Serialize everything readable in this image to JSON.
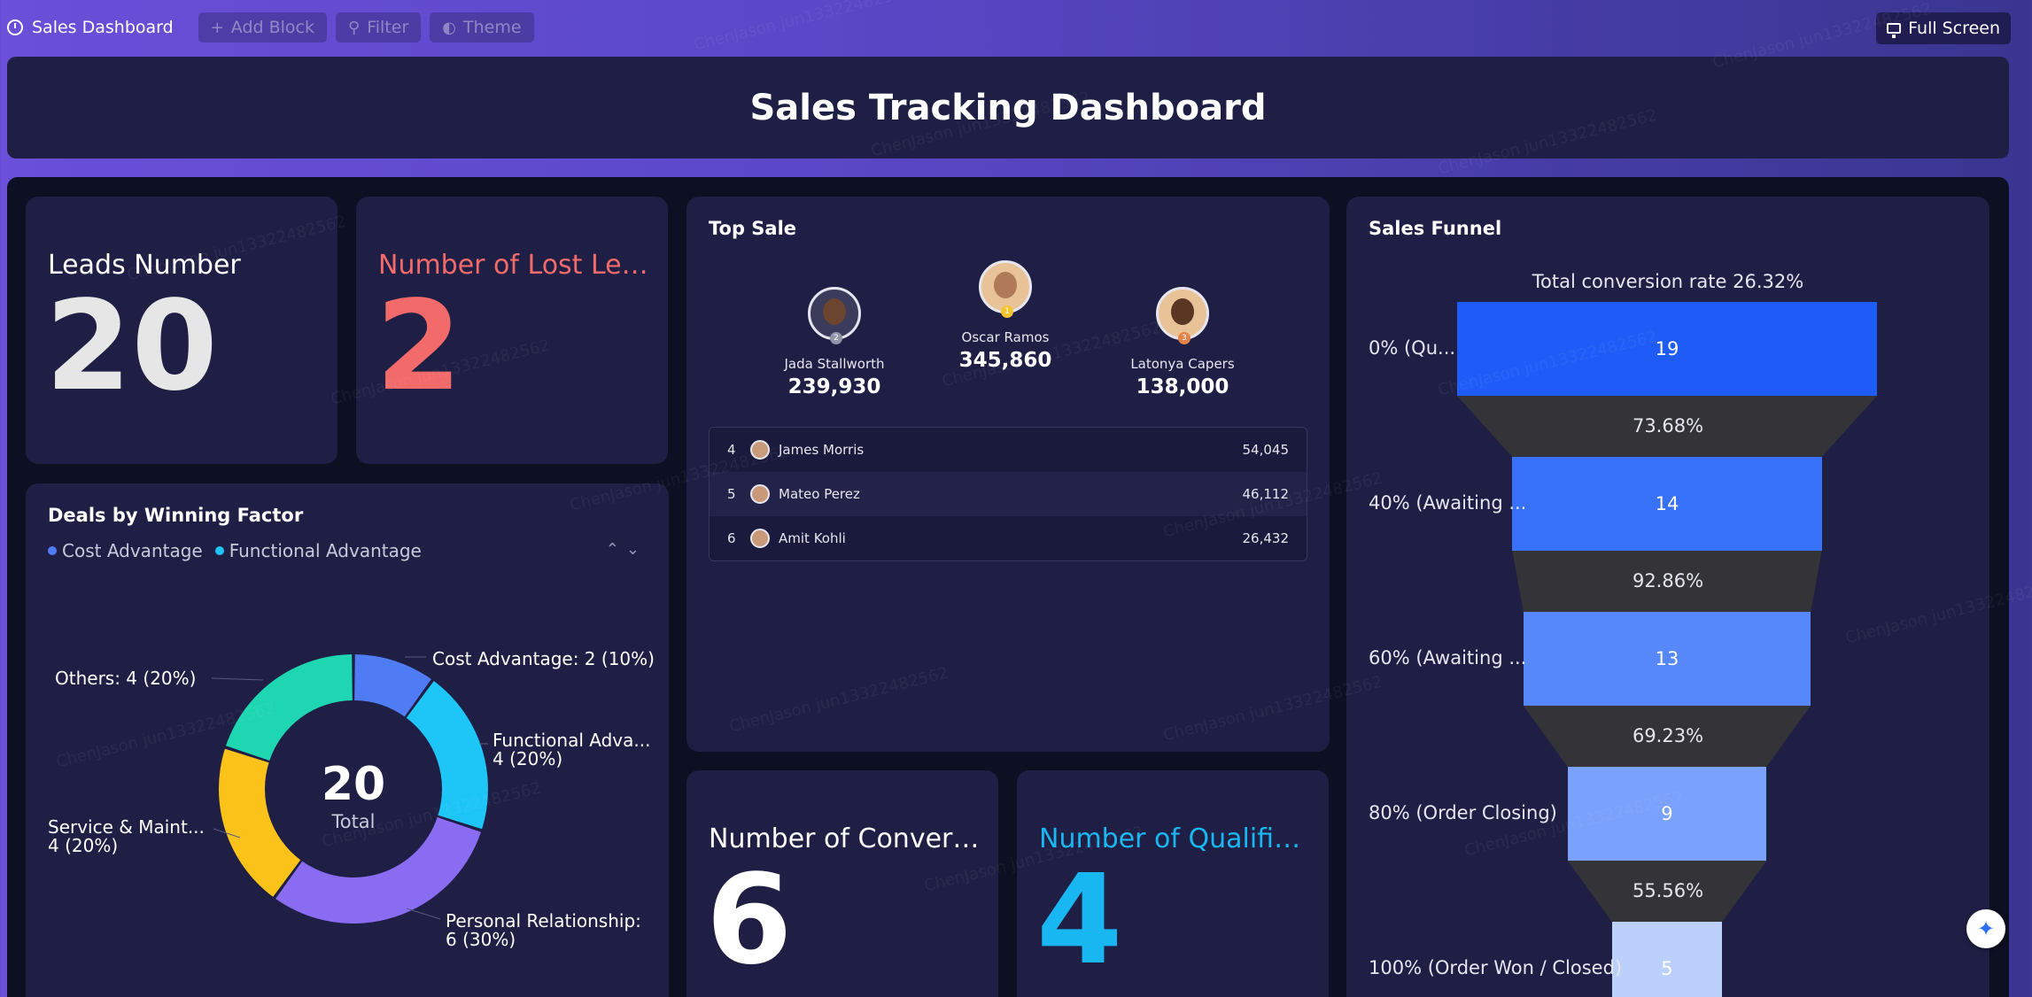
{
  "toolbar": {
    "app_title": "Sales Dashboard",
    "add_block": "Add Block",
    "filter": "Filter",
    "theme": "Theme",
    "full_screen": "Full Screen"
  },
  "header": {
    "title": "Sales Tracking Dashboard"
  },
  "metrics": {
    "leads": {
      "label": "Leads Number",
      "value": "20",
      "color": "#e6e6e6"
    },
    "lost_leads": {
      "label": "Number of Lost Leads",
      "value": "2",
      "color": "#f26a6a"
    },
    "converted": {
      "label": "Number of Converte...",
      "value": "6",
      "color": "#ffffff"
    },
    "qualified": {
      "label": "Number of Qualified ...",
      "value": "4",
      "color": "#19b7f2"
    }
  },
  "top_sale": {
    "title": "Top Sale",
    "podium": [
      {
        "rank": "2",
        "name": "Jada Stallworth",
        "value": "239,930"
      },
      {
        "rank": "1",
        "name": "Oscar Ramos",
        "value": "345,860"
      },
      {
        "rank": "3",
        "name": "Latonya Capers",
        "value": "138,000"
      }
    ],
    "list": [
      {
        "rank": "4",
        "name": "James Morris",
        "value": "54,045"
      },
      {
        "rank": "5",
        "name": "Mateo Perez",
        "value": "46,112"
      },
      {
        "rank": "6",
        "name": "Amit Kohli",
        "value": "26,432"
      }
    ]
  },
  "deals": {
    "title": "Deals by Winning Factor",
    "legend": [
      {
        "label": "Cost Advantage",
        "color": "#4f7cf5"
      },
      {
        "label": "Functional Advantage",
        "color": "#1ec5f7"
      }
    ],
    "center_value": "20",
    "center_label": "Total",
    "slice_labels": {
      "cost": "Cost Advantage: 2 (10%)",
      "functional_1": "Functional Adva...",
      "functional_2": "4 (20%)",
      "personal_1": "Personal Relationship:",
      "personal_2": "6 (30%)",
      "service_1": "Service & Maint...",
      "service_2": "4 (20%)",
      "others": "Others: 4 (20%)"
    }
  },
  "chart_data": {
    "type": "pie",
    "categories": [
      "Cost Advantage",
      "Functional Advantage",
      "Personal Relationship",
      "Service & Maint...",
      "Others"
    ],
    "values": [
      2,
      4,
      6,
      4,
      4
    ],
    "colors": [
      "#4f7cf5",
      "#1ec5f7",
      "#8a6cf2",
      "#fbc21a",
      "#1ed6b2"
    ]
  },
  "funnel": {
    "title": "Sales Funnel",
    "total_rate": "Total conversion rate 26.32%",
    "stages": [
      {
        "label": "0% (Qu...",
        "value": 19,
        "color": "#1f5cf7"
      },
      {
        "label": "40% (Awaiting ...",
        "value": 14,
        "color": "#3771f9"
      },
      {
        "label": "60% (Awaiting ...",
        "value": 13,
        "color": "#5687fb"
      },
      {
        "label": "80% (Order Closing)",
        "value": 9,
        "color": "#7aa1fb"
      },
      {
        "label": "100% (Order Won / Closed)",
        "value": 5,
        "color": "#bcd0fc"
      }
    ],
    "conversions": [
      "73.68%",
      "92.86%",
      "69.23%",
      "55.56%"
    ]
  },
  "watermark": "ChenJason jun13322482562"
}
